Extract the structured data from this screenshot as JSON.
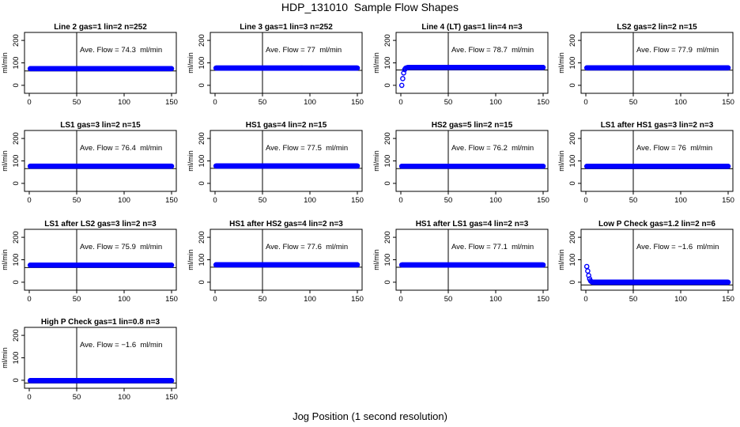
{
  "title": "HDP_131010  Sample Flow Shapes",
  "xlabel": "Jog Position (1 second resolution)",
  "colors": {
    "points": "#0000ff",
    "axes": "#000000",
    "background": "#ffffff"
  },
  "chart_data": [
    {
      "type": "scatter",
      "title": "Line 2 gas=1 lin=2 n=252",
      "annotation": "Ave. Flow = 74.3  ml/min",
      "ylabel": "ml/min",
      "xlim": [
        0,
        150
      ],
      "ylim": [
        -25,
        225
      ],
      "xticks": [
        0,
        50,
        100,
        150
      ],
      "yticks": [
        0,
        100,
        200
      ],
      "ytick_labels": [
        "0",
        "100",
        "200"
      ],
      "vline": 50,
      "hline": 74.3,
      "x": [
        1,
        150
      ],
      "y": [
        74.3,
        74.3
      ]
    },
    {
      "type": "scatter",
      "title": "Line 3 gas=1 lin=3 n=252",
      "annotation": "Ave. Flow = 77  ml/min",
      "ylabel": "ml/min",
      "xlim": [
        0,
        150
      ],
      "ylim": [
        -25,
        225
      ],
      "xticks": [
        0,
        50,
        100,
        150
      ],
      "yticks": [
        0,
        100,
        200
      ],
      "ytick_labels": [
        "0",
        "100",
        "200"
      ],
      "vline": 50,
      "hline": 77,
      "x": [
        1,
        150
      ],
      "y": [
        77,
        77
      ]
    },
    {
      "type": "scatter",
      "title": "Line 4 (LT) gas=1 lin=4 n=3",
      "annotation": "Ave. Flow = 78.7  ml/min",
      "ylabel": "ml/min",
      "xlim": [
        0,
        150
      ],
      "ylim": [
        -25,
        225
      ],
      "xticks": [
        0,
        50,
        100,
        150
      ],
      "yticks": [
        0,
        100,
        200
      ],
      "ytick_labels": [
        "0",
        "100",
        "200"
      ],
      "vline": 50,
      "hline": 78.7,
      "x": [
        1,
        2,
        3,
        4,
        5,
        6,
        7,
        8,
        150
      ],
      "y": [
        0,
        30,
        55,
        70,
        76,
        78,
        79,
        79.5,
        79.5
      ]
    },
    {
      "type": "scatter",
      "title": "LS2 gas=2 lin=2 n=15",
      "annotation": "Ave. Flow = 77.9  ml/min",
      "ylabel": "ml/min",
      "xlim": [
        0,
        150
      ],
      "ylim": [
        -25,
        225
      ],
      "xticks": [
        0,
        50,
        100,
        150
      ],
      "yticks": [
        0,
        100,
        200
      ],
      "ytick_labels": [
        "0",
        "100",
        "200"
      ],
      "vline": 50,
      "hline": 77.9,
      "x": [
        1,
        150
      ],
      "y": [
        77.9,
        77.9
      ]
    },
    {
      "type": "scatter",
      "title": "LS1 gas=3 lin=2 n=15",
      "annotation": "Ave. Flow = 76.4  ml/min",
      "ylabel": "ml/min",
      "xlim": [
        0,
        150
      ],
      "ylim": [
        -25,
        225
      ],
      "xticks": [
        0,
        50,
        100,
        150
      ],
      "yticks": [
        0,
        100,
        200
      ],
      "ytick_labels": [
        "0",
        "100",
        "200"
      ],
      "vline": 50,
      "hline": 76.4,
      "x": [
        1,
        150
      ],
      "y": [
        76.4,
        76.4
      ]
    },
    {
      "type": "scatter",
      "title": "HS1 gas=4 lin=2 n=15",
      "annotation": "Ave. Flow = 77.5  ml/min",
      "ylabel": "ml/min",
      "xlim": [
        0,
        150
      ],
      "ylim": [
        -25,
        225
      ],
      "xticks": [
        0,
        50,
        100,
        150
      ],
      "yticks": [
        0,
        100,
        200
      ],
      "ytick_labels": [
        "0",
        "100",
        "200"
      ],
      "vline": 50,
      "hline": 77.5,
      "x": [
        1,
        150
      ],
      "y": [
        77.5,
        77.5
      ]
    },
    {
      "type": "scatter",
      "title": "HS2 gas=5 lin=2 n=15",
      "annotation": "Ave. Flow = 76.2  ml/min",
      "ylabel": "ml/min",
      "xlim": [
        0,
        150
      ],
      "ylim": [
        -25,
        225
      ],
      "xticks": [
        0,
        50,
        100,
        150
      ],
      "yticks": [
        0,
        100,
        200
      ],
      "ytick_labels": [
        "0",
        "100",
        "200"
      ],
      "vline": 50,
      "hline": 76.2,
      "x": [
        1,
        150
      ],
      "y": [
        76.2,
        76.2
      ]
    },
    {
      "type": "scatter",
      "title": "LS1 after HS1 gas=3 lin=2 n=3",
      "annotation": "Ave. Flow = 76  ml/min",
      "ylabel": "ml/min",
      "xlim": [
        0,
        150
      ],
      "ylim": [
        -25,
        225
      ],
      "xticks": [
        0,
        50,
        100,
        150
      ],
      "yticks": [
        0,
        100,
        200
      ],
      "ytick_labels": [
        "0",
        "100",
        "200"
      ],
      "vline": 50,
      "hline": 76,
      "x": [
        1,
        150
      ],
      "y": [
        76,
        76
      ]
    },
    {
      "type": "scatter",
      "title": "LS1 after LS2 gas=3 lin=2 n=3",
      "annotation": "Ave. Flow = 75.9  ml/min",
      "ylabel": "ml/min",
      "xlim": [
        0,
        150
      ],
      "ylim": [
        -25,
        225
      ],
      "xticks": [
        0,
        50,
        100,
        150
      ],
      "yticks": [
        0,
        100,
        200
      ],
      "ytick_labels": [
        "0",
        "100",
        "200"
      ],
      "vline": 50,
      "hline": 75.9,
      "x": [
        1,
        150
      ],
      "y": [
        75.9,
        75.9
      ]
    },
    {
      "type": "scatter",
      "title": "HS1 after HS2 gas=4 lin=2 n=3",
      "annotation": "Ave. Flow = 77.6  ml/min",
      "ylabel": "ml/min",
      "xlim": [
        0,
        150
      ],
      "ylim": [
        -25,
        225
      ],
      "xticks": [
        0,
        50,
        100,
        150
      ],
      "yticks": [
        0,
        100,
        200
      ],
      "ytick_labels": [
        "0",
        "100",
        "200"
      ],
      "vline": 50,
      "hline": 77.6,
      "x": [
        1,
        150
      ],
      "y": [
        77.6,
        77.6
      ]
    },
    {
      "type": "scatter",
      "title": "HS1 after LS1 gas=4 lin=2 n=3",
      "annotation": "Ave. Flow = 77.1  ml/min",
      "ylabel": "ml/min",
      "xlim": [
        0,
        150
      ],
      "ylim": [
        -25,
        225
      ],
      "xticks": [
        0,
        50,
        100,
        150
      ],
      "yticks": [
        0,
        100,
        200
      ],
      "ytick_labels": [
        "0",
        "100",
        "200"
      ],
      "vline": 50,
      "hline": 77.1,
      "x": [
        1,
        150
      ],
      "y": [
        77.1,
        77.1
      ]
    },
    {
      "type": "scatter",
      "title": "Low P Check gas=1.2 lin=2 n=6",
      "annotation": "Ave. Flow = −1.6  ml/min",
      "ylabel": "ml/min",
      "xlim": [
        0,
        150
      ],
      "ylim": [
        -25,
        225
      ],
      "xticks": [
        0,
        50,
        100,
        150
      ],
      "yticks": [
        0,
        100,
        200
      ],
      "ytick_labels": [
        "0",
        "100",
        "200"
      ],
      "vline": 50,
      "hline": -1.6,
      "x": [
        1,
        2,
        3,
        4,
        5,
        6,
        7,
        150
      ],
      "y": [
        70,
        50,
        30,
        15,
        6,
        2,
        0,
        0
      ]
    },
    {
      "type": "scatter",
      "title": "High P Check gas=1 lin=0.8 n=3",
      "annotation": "Ave. Flow = −1.6  ml/min",
      "ylabel": "ml/min",
      "xlim": [
        0,
        150
      ],
      "ylim": [
        -25,
        225
      ],
      "xticks": [
        0,
        50,
        100,
        150
      ],
      "yticks": [
        0,
        100,
        200
      ],
      "ytick_labels": [
        "0",
        "100",
        "200"
      ],
      "vline": 50,
      "hline": -1.6,
      "x": [
        1,
        150
      ],
      "y": [
        -1.6,
        -1.6
      ]
    }
  ]
}
